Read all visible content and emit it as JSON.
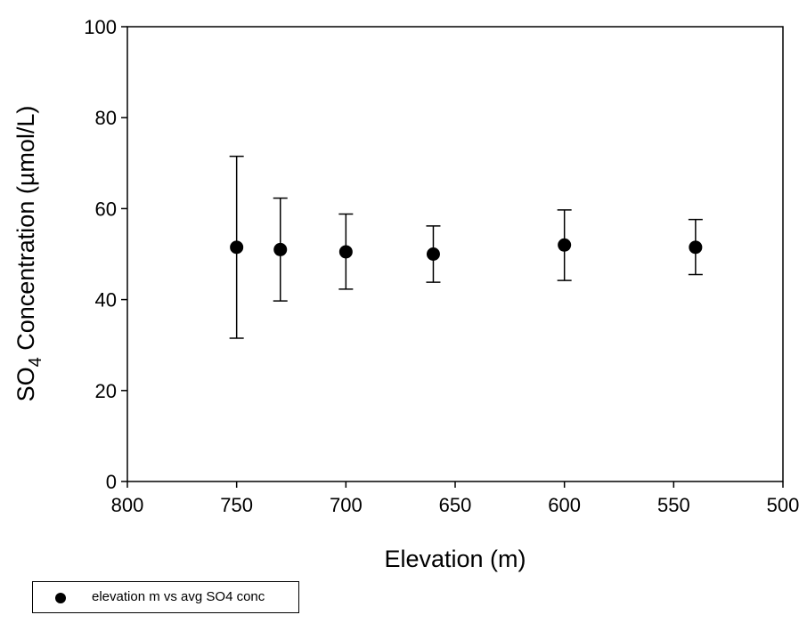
{
  "chart_data": {
    "type": "scatter",
    "xlabel": "Elevation (m)",
    "ylabel_main": "SO",
    "ylabel_sub": "4",
    "ylabel_rest": " Concentration (µmol/L)",
    "xlim": [
      800,
      500
    ],
    "ylim": [
      0,
      100
    ],
    "x_reversed": true,
    "x_ticks": [
      "800",
      "750",
      "700",
      "650",
      "600",
      "550",
      "500"
    ],
    "y_ticks": [
      "0",
      "20",
      "40",
      "60",
      "80",
      "100"
    ],
    "grid": false,
    "legend_position": "bottom-left",
    "series": [
      {
        "name": "elevation m vs avg SO4 conc",
        "color": "#000000",
        "marker": "filled-circle",
        "points": [
          {
            "x": 750,
            "y": 51.5,
            "err_low": 31.5,
            "err_high": 71.5
          },
          {
            "x": 730,
            "y": 51.0,
            "err_low": 39.7,
            "err_high": 62.3
          },
          {
            "x": 700,
            "y": 50.5,
            "err_low": 42.3,
            "err_high": 58.8
          },
          {
            "x": 660,
            "y": 50.0,
            "err_low": 43.8,
            "err_high": 56.2
          },
          {
            "x": 600,
            "y": 52.0,
            "err_low": 44.2,
            "err_high": 59.7
          },
          {
            "x": 540,
            "y": 51.5,
            "err_low": 45.5,
            "err_high": 57.6
          }
        ]
      }
    ]
  },
  "legend": {
    "label": "elevation m vs avg SO4 conc"
  }
}
